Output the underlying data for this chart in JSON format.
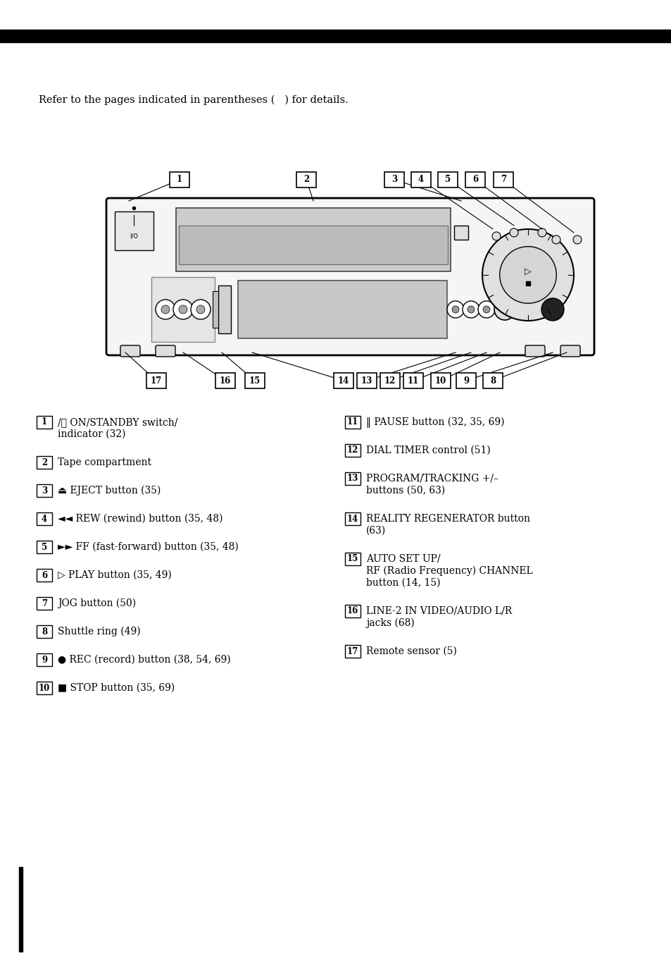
{
  "bg_color": "#ffffff",
  "bar_color": "#000000",
  "intro_text": "Refer to the pages indicated in parentheses (   ) for details.",
  "left_items": [
    {
      "num": "1",
      "lines": [
        "/⏻ ON/STANDBY switch/",
        "indicator (32)"
      ]
    },
    {
      "num": "2",
      "lines": [
        "Tape compartment"
      ]
    },
    {
      "num": "3",
      "lines": [
        "⏏ EJECT button (35)"
      ]
    },
    {
      "num": "4",
      "lines": [
        "◄◄ REW (rewind) button (35, 48)"
      ]
    },
    {
      "num": "5",
      "lines": [
        "►► FF (fast-forward) button (35, 48)"
      ]
    },
    {
      "num": "6",
      "lines": [
        "▷ PLAY button (35, 49)"
      ]
    },
    {
      "num": "7",
      "lines": [
        "JOG button (50)"
      ]
    },
    {
      "num": "8",
      "lines": [
        "Shuttle ring (49)"
      ]
    },
    {
      "num": "9",
      "lines": [
        "● REC (record) button (38, 54, 69)"
      ]
    },
    {
      "num": "10",
      "lines": [
        "■ STOP button (35, 69)"
      ]
    }
  ],
  "right_items": [
    {
      "num": "11",
      "lines": [
        "‖ PAUSE button (32, 35, 69)"
      ]
    },
    {
      "num": "12",
      "lines": [
        "DIAL TIMER control (51)"
      ]
    },
    {
      "num": "13",
      "lines": [
        "PROGRAM/TRACKING +/–",
        "buttons (50, 63)"
      ]
    },
    {
      "num": "14",
      "lines": [
        "REALITY REGENERATOR button",
        "(63)"
      ]
    },
    {
      "num": "15",
      "lines": [
        "AUTO SET UP/",
        "RF (Radio Frequency) CHANNEL",
        "button (14, 15)"
      ]
    },
    {
      "num": "16",
      "lines": [
        "LINE-2 IN VIDEO/AUDIO L/R",
        "jacks (68)"
      ]
    },
    {
      "num": "17",
      "lines": [
        "Remote sensor (5)"
      ]
    }
  ]
}
